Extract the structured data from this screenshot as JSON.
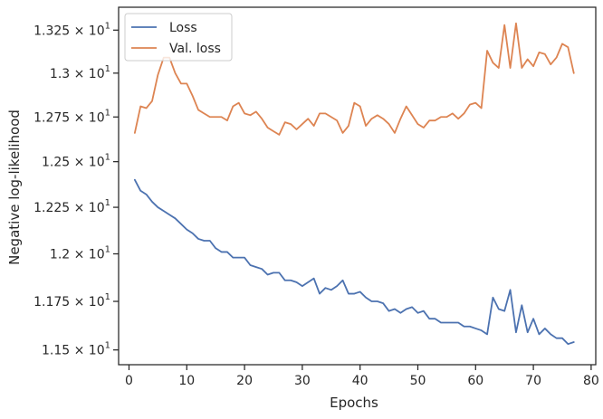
{
  "chart_data": {
    "type": "line",
    "title": "",
    "xlabel": "Epochs",
    "ylabel": "Negative log-likelihood",
    "xlim": [
      -1.8,
      80.8
    ],
    "ylim": [
      11.425,
      13.385
    ],
    "yscale": "log",
    "x_ticks": [
      0,
      10,
      20,
      30,
      40,
      50,
      60,
      70,
      80
    ],
    "y_ticks": [
      11.5,
      11.75,
      12.0,
      12.25,
      12.5,
      12.75,
      13.0,
      13.25
    ],
    "y_tick_labels": [
      {
        "mant": "1.15",
        "exp": "1"
      },
      {
        "mant": "1.175",
        "exp": "1"
      },
      {
        "mant": "1.2",
        "exp": "1"
      },
      {
        "mant": "1.225",
        "exp": "1"
      },
      {
        "mant": "1.25",
        "exp": "1"
      },
      {
        "mant": "1.275",
        "exp": "1"
      },
      {
        "mant": "1.3",
        "exp": "1"
      },
      {
        "mant": "1.325",
        "exp": "1"
      }
    ],
    "tick_base": "× 10",
    "grid": false,
    "legend": "top-left",
    "series": [
      {
        "name": "Loss",
        "color": "#4c72b0",
        "x": [
          1,
          2,
          3,
          4,
          5,
          6,
          7,
          8,
          9,
          10,
          11,
          12,
          13,
          14,
          15,
          16,
          17,
          18,
          19,
          20,
          21,
          22,
          23,
          24,
          25,
          26,
          27,
          28,
          29,
          30,
          31,
          32,
          33,
          34,
          35,
          36,
          37,
          38,
          39,
          40,
          41,
          42,
          43,
          44,
          45,
          46,
          47,
          48,
          49,
          50,
          51,
          52,
          53,
          54,
          55,
          56,
          57,
          58,
          59,
          60,
          61,
          62,
          63,
          64,
          65,
          66,
          67,
          68,
          69,
          70,
          71,
          72,
          73,
          74,
          75,
          76,
          77
        ],
        "values": [
          12.4,
          12.34,
          12.32,
          12.28,
          12.25,
          12.23,
          12.21,
          12.19,
          12.16,
          12.13,
          12.11,
          12.08,
          12.07,
          12.07,
          12.03,
          12.01,
          12.01,
          11.98,
          11.98,
          11.98,
          11.94,
          11.93,
          11.92,
          11.89,
          11.9,
          11.9,
          11.86,
          11.86,
          11.85,
          11.83,
          11.85,
          11.87,
          11.79,
          11.82,
          11.81,
          11.83,
          11.86,
          11.79,
          11.79,
          11.8,
          11.77,
          11.75,
          11.75,
          11.74,
          11.7,
          11.71,
          11.69,
          11.71,
          11.72,
          11.69,
          11.7,
          11.66,
          11.66,
          11.64,
          11.64,
          11.64,
          11.64,
          11.62,
          11.62,
          11.61,
          11.6,
          11.58,
          11.77,
          11.71,
          11.7,
          11.81,
          11.59,
          11.73,
          11.59,
          11.66,
          11.58,
          11.61,
          11.58,
          11.56,
          11.56,
          11.53,
          11.54
        ]
      },
      {
        "name": "Val. loss",
        "color": "#dd8452",
        "x": [
          1,
          2,
          3,
          4,
          5,
          6,
          7,
          8,
          9,
          10,
          11,
          12,
          13,
          14,
          15,
          16,
          17,
          18,
          19,
          20,
          21,
          22,
          23,
          24,
          25,
          26,
          27,
          28,
          29,
          30,
          31,
          32,
          33,
          34,
          35,
          36,
          37,
          38,
          39,
          40,
          41,
          42,
          43,
          44,
          45,
          46,
          47,
          48,
          49,
          50,
          51,
          52,
          53,
          54,
          55,
          56,
          57,
          58,
          59,
          60,
          61,
          62,
          63,
          64,
          65,
          66,
          67,
          68,
          69,
          70,
          71,
          72,
          73,
          74,
          75,
          76,
          77
        ],
        "values": [
          12.66,
          12.81,
          12.8,
          12.84,
          12.99,
          13.09,
          13.09,
          13.0,
          12.94,
          12.94,
          12.87,
          12.79,
          12.77,
          12.75,
          12.75,
          12.75,
          12.73,
          12.81,
          12.83,
          12.77,
          12.76,
          12.78,
          12.74,
          12.69,
          12.67,
          12.65,
          12.72,
          12.71,
          12.68,
          12.71,
          12.74,
          12.7,
          12.77,
          12.77,
          12.75,
          12.73,
          12.66,
          12.7,
          12.83,
          12.81,
          12.7,
          12.74,
          12.76,
          12.74,
          12.71,
          12.66,
          12.74,
          12.81,
          12.76,
          12.71,
          12.69,
          12.73,
          12.73,
          12.75,
          12.75,
          12.77,
          12.74,
          12.77,
          12.82,
          12.83,
          12.8,
          13.13,
          13.06,
          13.03,
          13.28,
          13.03,
          13.29,
          13.03,
          13.08,
          13.04,
          13.12,
          13.11,
          13.05,
          13.09,
          13.17,
          13.15,
          13.0
        ]
      }
    ]
  }
}
